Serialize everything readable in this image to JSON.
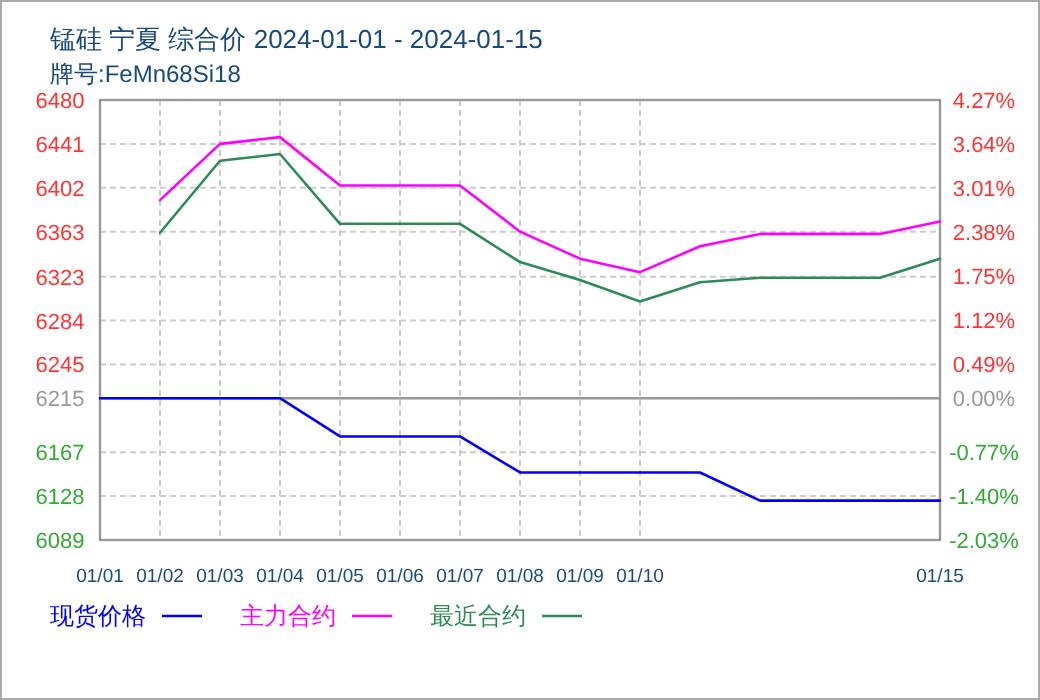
{
  "chart_data": {
    "type": "line",
    "title": "锰硅 宁夏 综合价 2024-01-01 - 2024-01-15",
    "subtitle": "牌号:FeMn68Si18",
    "categories": [
      "01/01",
      "01/02",
      "01/03",
      "01/04",
      "01/05",
      "01/06",
      "01/07",
      "01/08",
      "01/09",
      "01/10",
      null,
      null,
      null,
      null,
      "01/15"
    ],
    "series": [
      {
        "name": "现货价格",
        "color": "#0000ff",
        "values": [
          6215,
          6215,
          6215,
          6215,
          6181,
          6181,
          6181,
          6149,
          6149,
          6149,
          6149,
          6124,
          6124,
          6124,
          6124
        ]
      },
      {
        "name": "主力合约",
        "color": "#ff00ff",
        "values": [
          null,
          6391,
          6441,
          6447,
          6404,
          6404,
          6404,
          6363,
          6339,
          6327,
          6350,
          6361,
          6361,
          6361,
          6372
        ]
      },
      {
        "name": "最近合约",
        "color": "#2e8b57",
        "values": [
          null,
          6362,
          6426,
          6432,
          6370,
          6370,
          6370,
          6336,
          6320,
          6301,
          6318,
          6322,
          6322,
          6322,
          6339
        ]
      }
    ],
    "ylim": [
      6089,
      6480
    ],
    "yticks": [
      6480,
      6441,
      6402,
      6363,
      6323,
      6284,
      6245,
      6215,
      6167,
      6128,
      6089
    ],
    "y2lim": [
      -2.03,
      4.27
    ],
    "y2ticks": [
      {
        "value": 4.27,
        "label": "4.27%"
      },
      {
        "value": 3.64,
        "label": "3.64%"
      },
      {
        "value": 3.01,
        "label": "3.01%"
      },
      {
        "value": 2.38,
        "label": "2.38%"
      },
      {
        "value": 1.75,
        "label": "1.75%"
      },
      {
        "value": 1.12,
        "label": "1.12%"
      },
      {
        "value": 0.49,
        "label": "0.49%"
      },
      {
        "value": 0,
        "label": "0.00%"
      },
      {
        "value": -0.77,
        "label": "-0.77%"
      },
      {
        "value": -1.4,
        "label": "-1.40%"
      },
      {
        "value": -2.03,
        "label": "-2.03%"
      }
    ],
    "ref_lines": [
      {
        "axis": "y",
        "value": 6215,
        "color": "#999999"
      }
    ],
    "grid": true,
    "legend": "bottom",
    "line_style": "solid",
    "marker": "none"
  }
}
